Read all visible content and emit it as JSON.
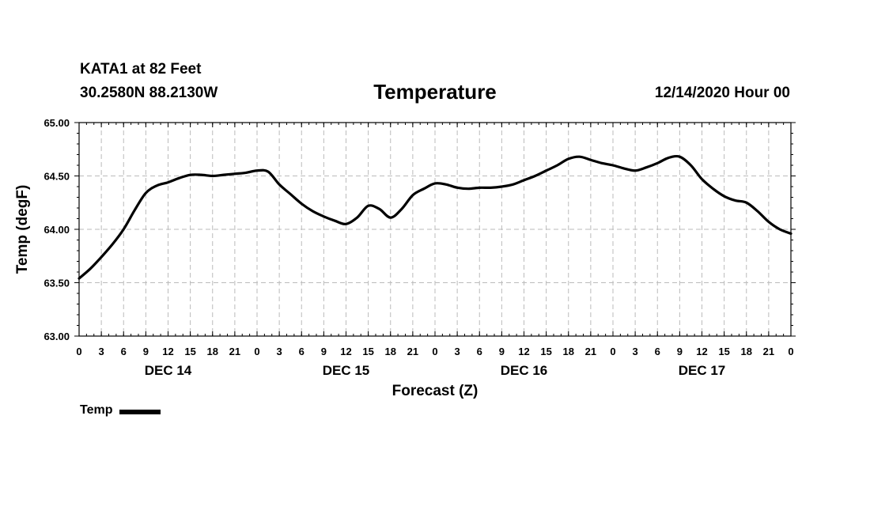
{
  "header": {
    "station": "KATA1 at 82 Feet",
    "coords": "30.2580N 88.2130W",
    "run": "12/14/2020 Hour 00"
  },
  "legend": {
    "label": "Temp"
  },
  "chart_data": {
    "type": "line",
    "title": "Temperature",
    "xlabel": "Forecast (Z)",
    "ylabel": "Temp (degF)",
    "x_unit": "hours since 12/14/2020 00Z",
    "xlim": [
      0,
      96
    ],
    "ylim": [
      63.0,
      65.0
    ],
    "yticks": [
      "63.00",
      "63.50",
      "64.00",
      "64.50",
      "65.00"
    ],
    "ytick_values": [
      63.0,
      63.5,
      64.0,
      64.5,
      65.0
    ],
    "xtick_hours": [
      0,
      3,
      6,
      9,
      12,
      15,
      18,
      21,
      24,
      27,
      30,
      33,
      36,
      39,
      42,
      45,
      48,
      51,
      54,
      57,
      60,
      63,
      66,
      69,
      72,
      75,
      78,
      81,
      84,
      87,
      90,
      93,
      96
    ],
    "xtick_labels": [
      "0",
      "3",
      "6",
      "9",
      "12",
      "15",
      "18",
      "21",
      "0",
      "3",
      "6",
      "9",
      "12",
      "15",
      "18",
      "21",
      "0",
      "3",
      "6",
      "9",
      "12",
      "15",
      "18",
      "21",
      "0",
      "3",
      "6",
      "9",
      "12",
      "15",
      "18",
      "21",
      "0"
    ],
    "day_labels": [
      {
        "label": "DEC 14",
        "hour": 12
      },
      {
        "label": "DEC 15",
        "hour": 36
      },
      {
        "label": "DEC 16",
        "hour": 60
      },
      {
        "label": "DEC 17",
        "hour": 84
      }
    ],
    "grid": true,
    "series": [
      {
        "name": "Temp",
        "color": "#000000",
        "x": [
          0,
          1.5,
          3,
          4.5,
          6,
          7.5,
          9,
          10.5,
          12,
          13.5,
          15,
          16.5,
          18,
          19.5,
          21,
          22.5,
          24,
          25.5,
          27,
          28.5,
          30,
          31.5,
          33,
          34.5,
          36,
          37.5,
          39,
          40.5,
          42,
          43.5,
          45,
          46.5,
          48,
          49.5,
          51,
          52.5,
          54,
          55.5,
          57,
          58.5,
          60,
          61.5,
          63,
          64.5,
          66,
          67.5,
          69,
          70.5,
          72,
          73.5,
          75,
          76.5,
          78,
          79.5,
          81,
          82.5,
          84,
          85.5,
          87,
          88.5,
          90,
          91.5,
          93,
          94.5,
          96
        ],
        "values": [
          63.54,
          63.63,
          63.74,
          63.86,
          64.0,
          64.18,
          64.34,
          64.41,
          64.44,
          64.48,
          64.51,
          64.51,
          64.5,
          64.51,
          64.52,
          64.53,
          64.55,
          64.54,
          64.42,
          64.33,
          64.24,
          64.17,
          64.12,
          64.08,
          64.05,
          64.11,
          64.22,
          64.19,
          64.11,
          64.19,
          64.32,
          64.38,
          64.43,
          64.42,
          64.39,
          64.38,
          64.39,
          64.39,
          64.4,
          64.42,
          64.46,
          64.5,
          64.55,
          64.6,
          64.66,
          64.68,
          64.65,
          64.62,
          64.6,
          64.57,
          64.55,
          64.58,
          64.62,
          64.67,
          64.68,
          64.6,
          64.47,
          64.38,
          64.31,
          64.27,
          64.25,
          64.17,
          64.07,
          64.0,
          63.96
        ]
      }
    ]
  }
}
